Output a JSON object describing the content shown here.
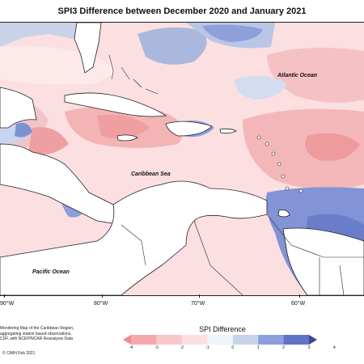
{
  "title": "SPI3 Difference between December 2020 and January 2021",
  "labels": {
    "atlantic": "Atlantic Ocean",
    "caribbean": "Caribbean Sea",
    "pacific": "Pacific Ocean"
  },
  "longitude_ticks": [
    "90°W",
    "80°W",
    "70°W",
    "60°W"
  ],
  "legend": {
    "title": "SPI Difference",
    "ticks": [
      "-4",
      "-3",
      "-2",
      "-1",
      "0",
      "1",
      "2",
      "3",
      "4"
    ],
    "colors": [
      "#f08a8e",
      "#f4a9ab",
      "#f8c7c9",
      "#fbe0e2",
      "#eef4f7",
      "#c7d2ec",
      "#8b9ede",
      "#5f73c4",
      "#3b4790"
    ]
  },
  "credit_lines": [
    "Monitoring Map of the Caribbean Region,",
    "aggregating station based observations,",
    "CDF, with NCEP/NCAR Reanalysis Data"
  ],
  "copyright": "© CIMH Feb 2021"
}
